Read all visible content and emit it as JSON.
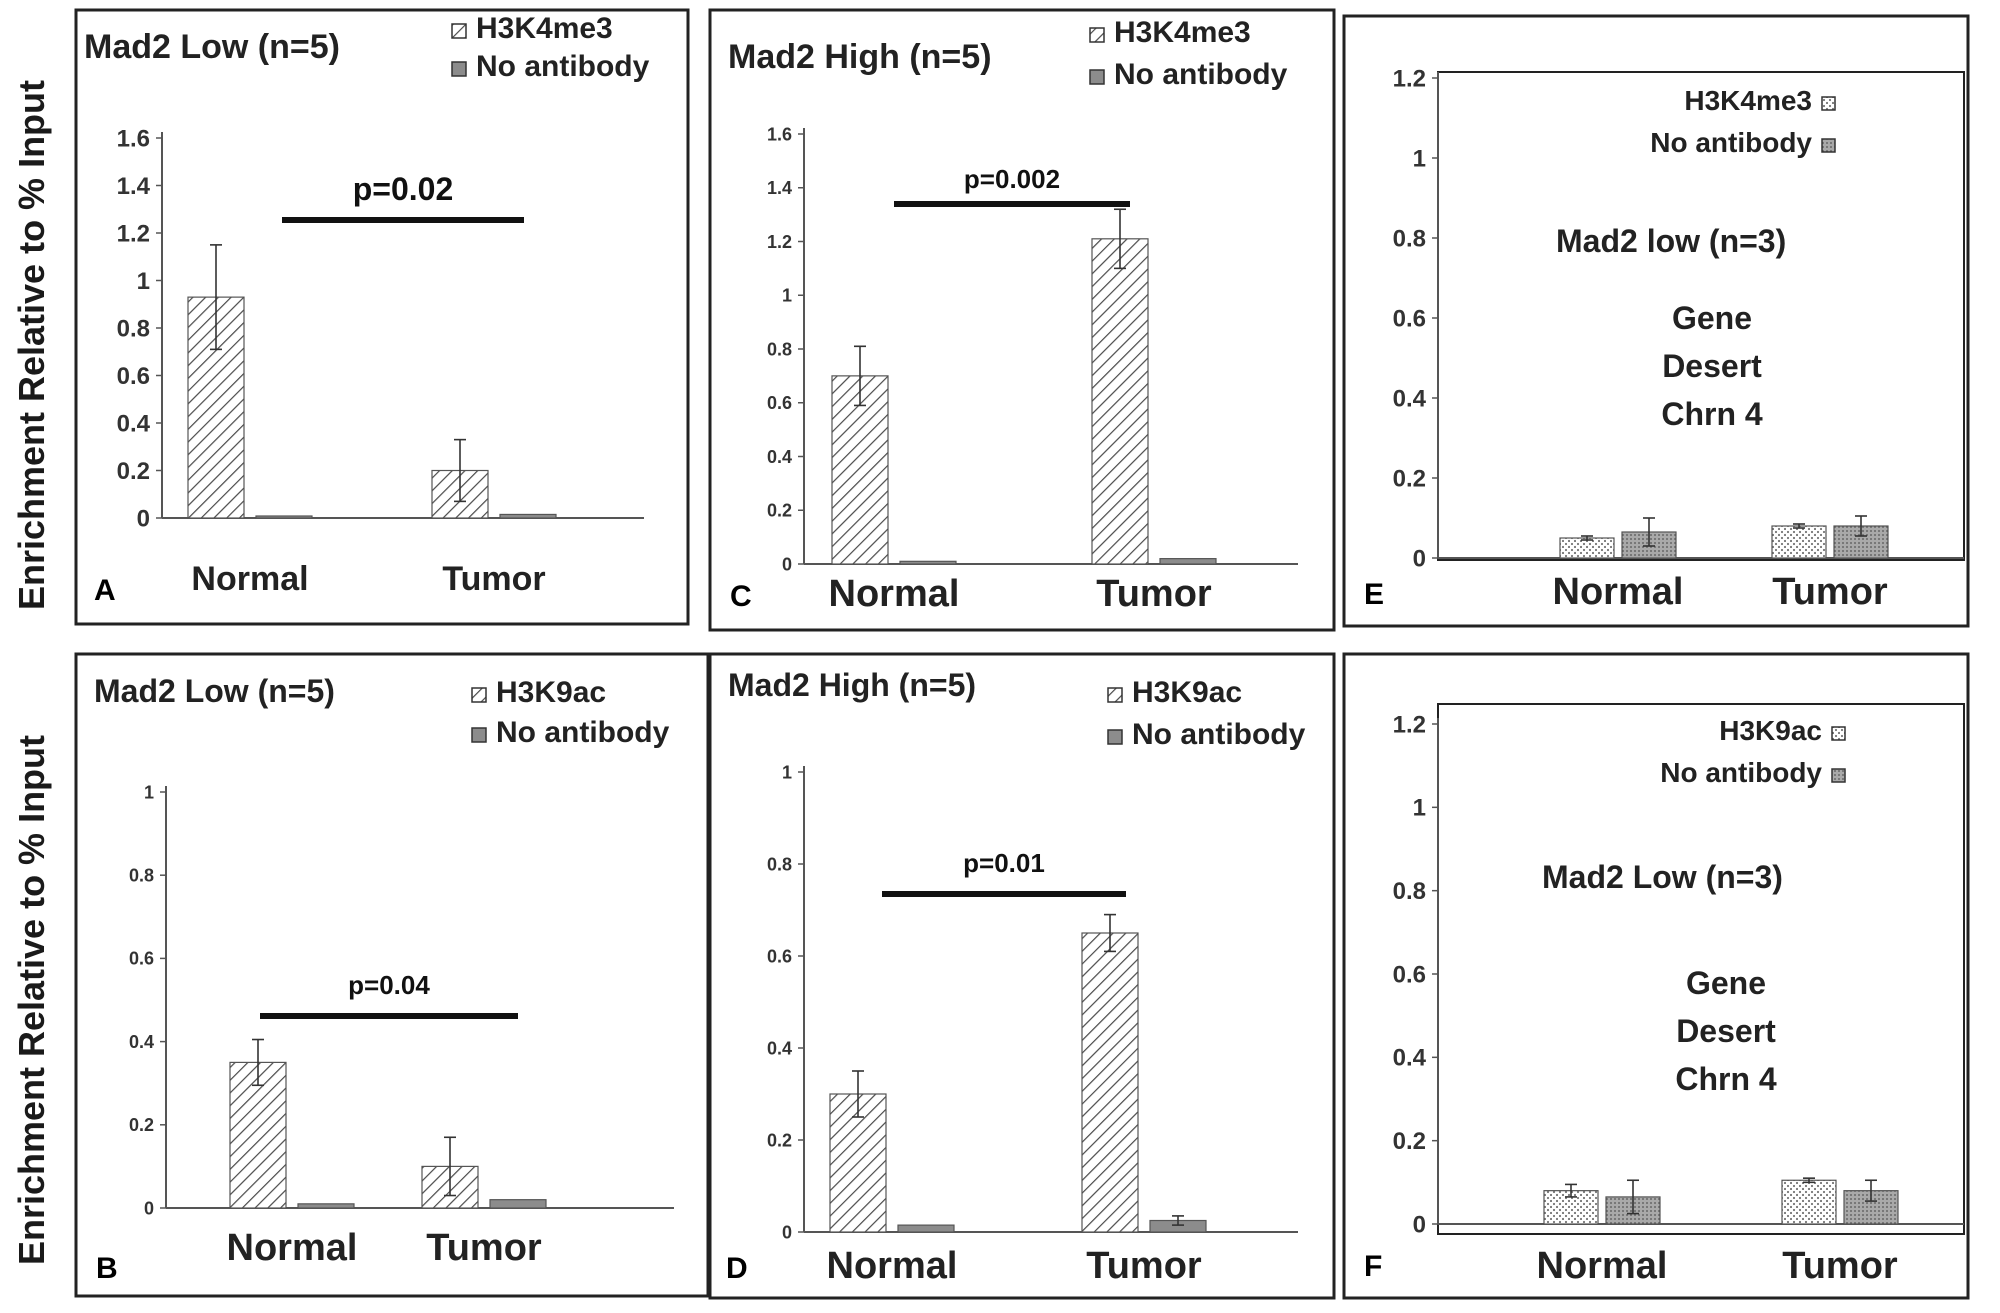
{
  "figure": {
    "y_axis_label": "Enrichment Relative to % Input"
  },
  "colors": {
    "frame": "#222222",
    "hatch": "#4a4a4a",
    "no_antibody": "#8c8c8c",
    "axis": "#555555",
    "dotted": "#9a9a9a"
  },
  "chart_data": [
    {
      "panel": "A",
      "type": "bar",
      "title": "Mad2 Low (n=5)",
      "categories": [
        "Normal",
        "Tumor"
      ],
      "series": [
        {
          "name": "H3K4me3",
          "values": [
            0.93,
            0.2
          ],
          "errors": [
            0.22,
            0.13
          ],
          "style": "hatch"
        },
        {
          "name": "No antibody",
          "values": [
            0.005,
            0.015
          ],
          "errors": [
            0,
            0
          ],
          "style": "solid"
        }
      ],
      "ylim": [
        0,
        1.6
      ],
      "yticks": [
        "0",
        "0.2",
        "0.4",
        "0.6",
        "0.8",
        "1",
        "1.2",
        "1.4",
        "1.6"
      ],
      "annotation": "p=0.02",
      "legend": "top-right"
    },
    {
      "panel": "B",
      "type": "bar",
      "title": "Mad2 Low (n=5)",
      "categories": [
        "Normal",
        "Tumor"
      ],
      "series": [
        {
          "name": "H3K9ac",
          "values": [
            0.35,
            0.1
          ],
          "errors": [
            0.055,
            0.07
          ],
          "style": "hatch"
        },
        {
          "name": "No antibody",
          "values": [
            0.01,
            0.02
          ],
          "errors": [
            0,
            0
          ],
          "style": "solid"
        }
      ],
      "ylim": [
        0,
        1
      ],
      "yticks": [
        "0",
        "0.2",
        "0.4",
        "0.6",
        "0.8",
        "1"
      ],
      "annotation": "p=0.04",
      "legend": "top-right"
    },
    {
      "panel": "C",
      "type": "bar",
      "title": "Mad2 High (n=5)",
      "categories": [
        "Normal",
        "Tumor"
      ],
      "series": [
        {
          "name": "H3K4me3",
          "values": [
            0.7,
            1.21
          ],
          "errors": [
            0.11,
            0.11
          ],
          "style": "hatch"
        },
        {
          "name": "No antibody",
          "values": [
            0.01,
            0.02
          ],
          "errors": [
            0,
            0
          ],
          "style": "solid"
        }
      ],
      "ylim": [
        0,
        1.6
      ],
      "yticks": [
        "0",
        "0.2",
        "0.4",
        "0.6",
        "0.8",
        "1",
        "1.2",
        "1.4",
        "1.6"
      ],
      "annotation": "p=0.002",
      "legend": "top-right"
    },
    {
      "panel": "D",
      "type": "bar",
      "title": "Mad2 High (n=5)",
      "categories": [
        "Normal",
        "Tumor"
      ],
      "series": [
        {
          "name": "H3K9ac",
          "values": [
            0.3,
            0.65
          ],
          "errors": [
            0.05,
            0.04
          ],
          "style": "hatch"
        },
        {
          "name": "No antibody",
          "values": [
            0.015,
            0.025
          ],
          "errors": [
            0,
            0.01
          ],
          "style": "solid"
        }
      ],
      "ylim": [
        0,
        1
      ],
      "yticks": [
        "0",
        "0.2",
        "0.4",
        "0.6",
        "0.8",
        "1"
      ],
      "annotation": "p=0.01",
      "legend": "top-right"
    },
    {
      "panel": "E",
      "type": "bar",
      "title": "Mad2 low (n=3)",
      "region": [
        "Gene",
        "Desert",
        "Chrn  4"
      ],
      "categories": [
        "Normal",
        "Tumor"
      ],
      "series": [
        {
          "name": "H3K4me3",
          "values": [
            0.05,
            0.08
          ],
          "errors": [
            0.005,
            0.005
          ],
          "style": "dots"
        },
        {
          "name": "No antibody",
          "values": [
            0.065,
            0.08
          ],
          "errors": [
            0.035,
            0.025
          ],
          "style": "dense-dots"
        }
      ],
      "ylim": [
        0,
        1.2
      ],
      "yticks": [
        "0",
        "0.2",
        "0.4",
        "0.6",
        "0.8",
        "1",
        "1.2"
      ],
      "legend": "top-right"
    },
    {
      "panel": "F",
      "type": "bar",
      "title": "Mad2 Low (n=3)",
      "region": [
        "Gene",
        "Desert",
        "Chrn 4"
      ],
      "categories": [
        "Normal",
        "Tumor"
      ],
      "series": [
        {
          "name": "H3K9ac",
          "values": [
            0.08,
            0.105
          ],
          "errors": [
            0.015,
            0.005
          ],
          "style": "dots"
        },
        {
          "name": "No antibody",
          "values": [
            0.065,
            0.08
          ],
          "errors": [
            0.04,
            0.025
          ],
          "style": "dense-dots"
        }
      ],
      "ylim": [
        0,
        1.2
      ],
      "yticks": [
        "0",
        "0.2",
        "0.4",
        "0.6",
        "0.8",
        "1",
        "1.2"
      ],
      "legend": "top-right"
    }
  ]
}
